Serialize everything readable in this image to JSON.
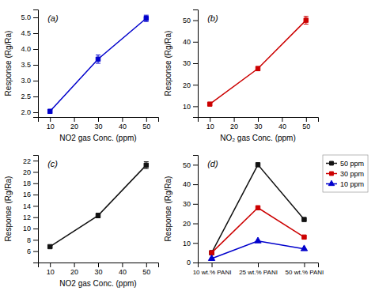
{
  "chart_data": [
    {
      "type": "line",
      "x": [
        10,
        30,
        50
      ],
      "xlabel": "NO2 gas Conc. (ppm)",
      "ylabel": "Response (Rg/Ra)",
      "annotations": [
        "(a)"
      ],
      "xlim": [
        5,
        55
      ],
      "xticks": [
        10,
        20,
        30,
        40,
        50
      ],
      "ylim": [
        1.85,
        5.25
      ],
      "yticks": [
        {
          "value": 2.0,
          "label": "2.0"
        },
        2.5,
        {
          "value": 3.0,
          "label": "3.0"
        },
        3.5,
        {
          "value": 4.0,
          "label": "4.0"
        },
        4.5,
        {
          "value": 5.0,
          "label": "5.0"
        }
      ],
      "grid": false,
      "series": [
        {
          "color": "#0000cc",
          "marker": "square",
          "values": [
            2.03,
            3.68,
            4.97
          ],
          "errors": [
            0.06,
            0.13,
            0.1
          ]
        }
      ]
    },
    {
      "type": "line",
      "x": [
        10,
        30,
        50
      ],
      "xlabel": "NO₂ gas Conc. (ppm)",
      "ylabel": "Response (Rg/Ra)",
      "annotations": [
        "(b)"
      ],
      "xlim": [
        5,
        55
      ],
      "xticks": [
        10,
        20,
        30,
        40,
        50
      ],
      "ylim": [
        5,
        55
      ],
      "yticks": [
        10,
        20,
        30,
        40,
        50
      ],
      "grid": false,
      "series": [
        {
          "color": "#cc0000",
          "marker": "square",
          "values": [
            11.0,
            27.5,
            50.0
          ],
          "errors": [
            0.5,
            1.0,
            1.8
          ]
        }
      ]
    },
    {
      "type": "line",
      "x": [
        10,
        30,
        50
      ],
      "xlabel": "NO2 gas Conc. (ppm)",
      "ylabel": "Response (Rg/Ra)",
      "annotations": [
        "(c)"
      ],
      "xlim": [
        5,
        55
      ],
      "xticks": [
        10,
        20,
        30,
        40,
        50
      ],
      "ylim": [
        4,
        23
      ],
      "yticks": [
        6,
        8,
        10,
        12,
        14,
        16,
        18,
        20,
        22
      ],
      "grid": false,
      "series": [
        {
          "color": "#111111",
          "marker": "square",
          "values": [
            6.8,
            12.3,
            21.2
          ],
          "errors": [
            0.15,
            0.4,
            0.6
          ]
        }
      ]
    },
    {
      "type": "line",
      "categories": [
        "10 wt.% PANI",
        "25 wt.% PANI",
        "50 wt.% PANI"
      ],
      "ylabel": "Response (Rg/Ra)",
      "annotations": [
        "(d)"
      ],
      "ylim": [
        0,
        55
      ],
      "yticks": [
        0,
        10,
        20,
        30,
        40,
        50
      ],
      "grid": false,
      "legend": "upper right",
      "series": [
        {
          "name": "50 ppm",
          "color": "#111111",
          "marker": "square",
          "values": [
            5.0,
            50.0,
            22.0
          ]
        },
        {
          "name": "30 ppm",
          "color": "#cc0000",
          "marker": "square",
          "values": [
            5.0,
            28.0,
            13.0
          ]
        },
        {
          "name": "10 ppm",
          "color": "#0000cc",
          "marker": "triangle",
          "values": [
            2.0,
            11.0,
            7.0
          ]
        }
      ]
    }
  ]
}
